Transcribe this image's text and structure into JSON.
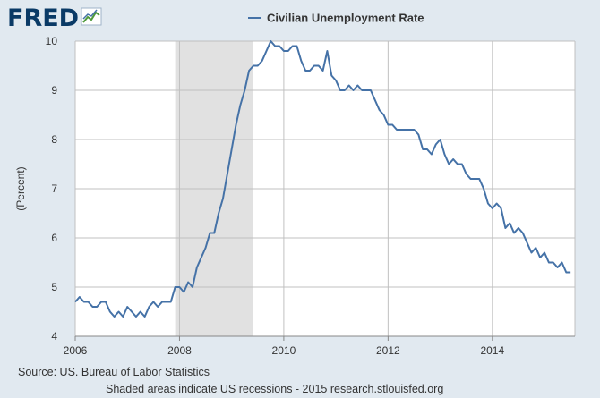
{
  "logo": {
    "text": "FRED"
  },
  "source_text": "Source: US. Bureau of Labor Statistics",
  "footnote_text": "Shaded areas indicate US recessions - 2015 research.stlouisfed.org",
  "colors": {
    "line": "#4572a7",
    "recession": "#e1e1e1",
    "background": "#e1e9f0",
    "plot_bg": "#ffffff",
    "grid": "#c0c0c0",
    "logo": "#0a3a66"
  },
  "chart_data": {
    "type": "line",
    "title": "",
    "xlabel": "",
    "ylabel": "(Percent)",
    "legend": {
      "position": "top-center",
      "entries": [
        "Civilian Unemployment Rate"
      ]
    },
    "grid": true,
    "xlim": [
      2006.0,
      2015.5833
    ],
    "ylim": [
      4,
      10
    ],
    "x_ticks": [
      2006,
      2008,
      2010,
      2012,
      2014
    ],
    "x_tick_labels": [
      "2006",
      "2008",
      "2010",
      "2012",
      "2014"
    ],
    "y_ticks": [
      4,
      5,
      6,
      7,
      8,
      9,
      10
    ],
    "y_tick_labels": [
      "4",
      "5",
      "6",
      "7",
      "8",
      "9",
      "10"
    ],
    "recessions": [
      {
        "start": "2007-12",
        "end": "2009-06"
      }
    ],
    "series": [
      {
        "name": "Civilian Unemployment Rate",
        "start": "2006-01",
        "frequency": "monthly",
        "values": [
          4.7,
          4.8,
          4.7,
          4.7,
          4.6,
          4.6,
          4.7,
          4.7,
          4.5,
          4.4,
          4.5,
          4.4,
          4.6,
          4.5,
          4.4,
          4.5,
          4.4,
          4.6,
          4.7,
          4.6,
          4.7,
          4.7,
          4.7,
          5.0,
          5.0,
          4.9,
          5.1,
          5.0,
          5.4,
          5.6,
          5.8,
          6.1,
          6.1,
          6.5,
          6.8,
          7.3,
          7.8,
          8.3,
          8.7,
          9.0,
          9.4,
          9.5,
          9.5,
          9.6,
          9.8,
          10.0,
          9.9,
          9.9,
          9.8,
          9.8,
          9.9,
          9.9,
          9.6,
          9.4,
          9.4,
          9.5,
          9.5,
          9.4,
          9.8,
          9.3,
          9.2,
          9.0,
          9.0,
          9.1,
          9.0,
          9.1,
          9.0,
          9.0,
          9.0,
          8.8,
          8.6,
          8.5,
          8.3,
          8.3,
          8.2,
          8.2,
          8.2,
          8.2,
          8.2,
          8.1,
          7.8,
          7.8,
          7.7,
          7.9,
          8.0,
          7.7,
          7.5,
          7.6,
          7.5,
          7.5,
          7.3,
          7.2,
          7.2,
          7.2,
          7.0,
          6.7,
          6.6,
          6.7,
          6.6,
          6.2,
          6.3,
          6.1,
          6.2,
          6.1,
          5.9,
          5.7,
          5.8,
          5.6,
          5.7,
          5.5,
          5.5,
          5.4,
          5.5,
          5.3,
          5.3
        ]
      }
    ]
  }
}
